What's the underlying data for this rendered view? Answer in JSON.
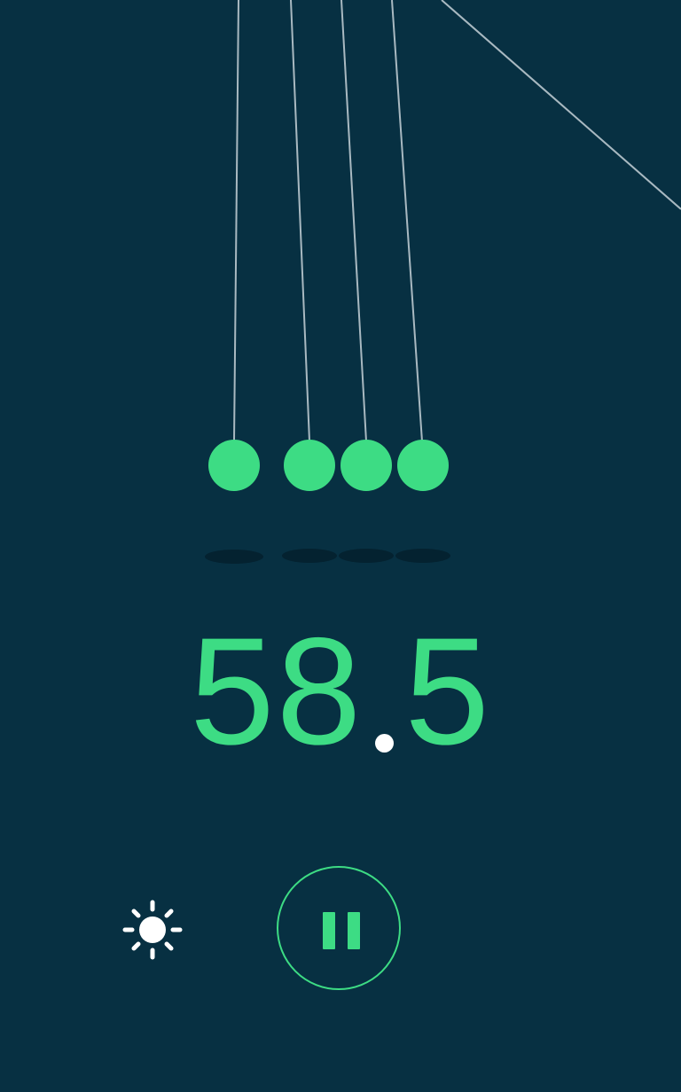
{
  "app": {
    "background": "#073042",
    "accent": "#3ddc84",
    "string_color": "#a9b9c1",
    "shadow_color": "#042230"
  },
  "timer": {
    "whole": "58",
    "fraction": "5"
  },
  "controls": {
    "theme_icon": "sun-icon",
    "pause_icon": "pause-icon"
  }
}
